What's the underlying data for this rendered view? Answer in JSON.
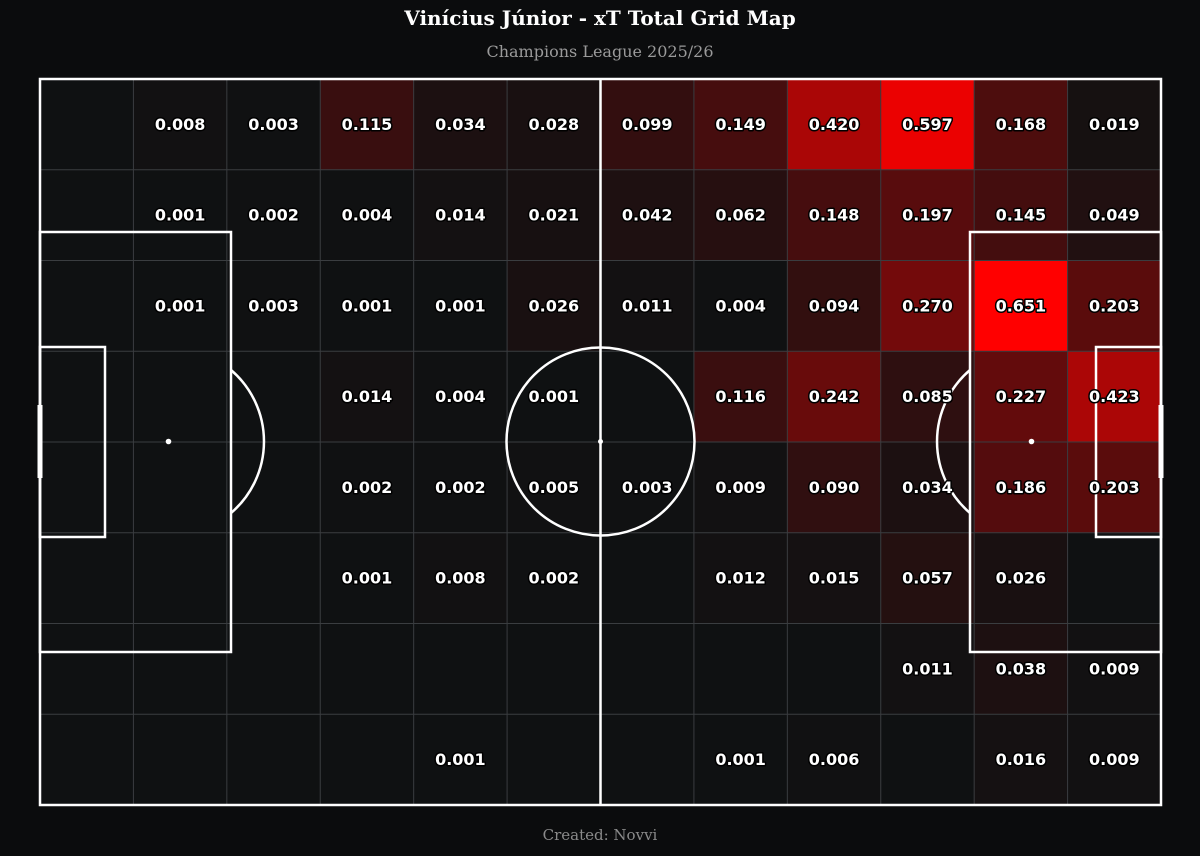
{
  "title": "Vinícius Júnior - xT Total Grid Map",
  "subtitle": "Champions League 2025/26",
  "credit": "Created: Novvi",
  "colors": {
    "background": "#0b0c0d",
    "cell_base": "#0f1112",
    "heat_max": "#ff0000",
    "grid_line": "#3a3d40",
    "pitch_line": "#ffffff"
  },
  "chart_data": {
    "type": "heatmap",
    "title": "Vinícius Júnior - xT Total Grid Map",
    "subtitle": "Champions League 2025/26",
    "columns": 12,
    "rows": 8,
    "cells": [
      [
        null,
        0.008,
        0.003,
        0.115,
        0.034,
        0.028,
        0.099,
        0.149,
        0.42,
        0.597,
        0.168,
        0.019
      ],
      [
        null,
        0.001,
        0.002,
        0.004,
        0.014,
        0.021,
        0.042,
        0.062,
        0.148,
        0.197,
        0.145,
        0.049
      ],
      [
        null,
        0.001,
        0.003,
        0.001,
        0.001,
        0.026,
        0.011,
        0.004,
        0.094,
        0.27,
        0.651,
        0.203
      ],
      [
        null,
        null,
        null,
        0.014,
        0.004,
        0.001,
        null,
        0.116,
        0.242,
        0.085,
        0.227,
        0.423
      ],
      [
        null,
        null,
        null,
        0.002,
        0.002,
        0.005,
        0.003,
        0.009,
        0.09,
        0.034,
        0.186,
        0.203
      ],
      [
        null,
        null,
        null,
        0.001,
        0.008,
        0.002,
        null,
        0.012,
        0.015,
        0.057,
        0.026,
        null
      ],
      [
        null,
        null,
        null,
        null,
        null,
        null,
        null,
        null,
        null,
        0.011,
        0.038,
        0.009
      ],
      [
        null,
        null,
        null,
        null,
        0.001,
        null,
        null,
        0.001,
        0.006,
        null,
        0.016,
        0.009
      ]
    ],
    "value_format": "3 decimals",
    "color_scale": "black to red",
    "grid": true,
    "legend": "none"
  }
}
